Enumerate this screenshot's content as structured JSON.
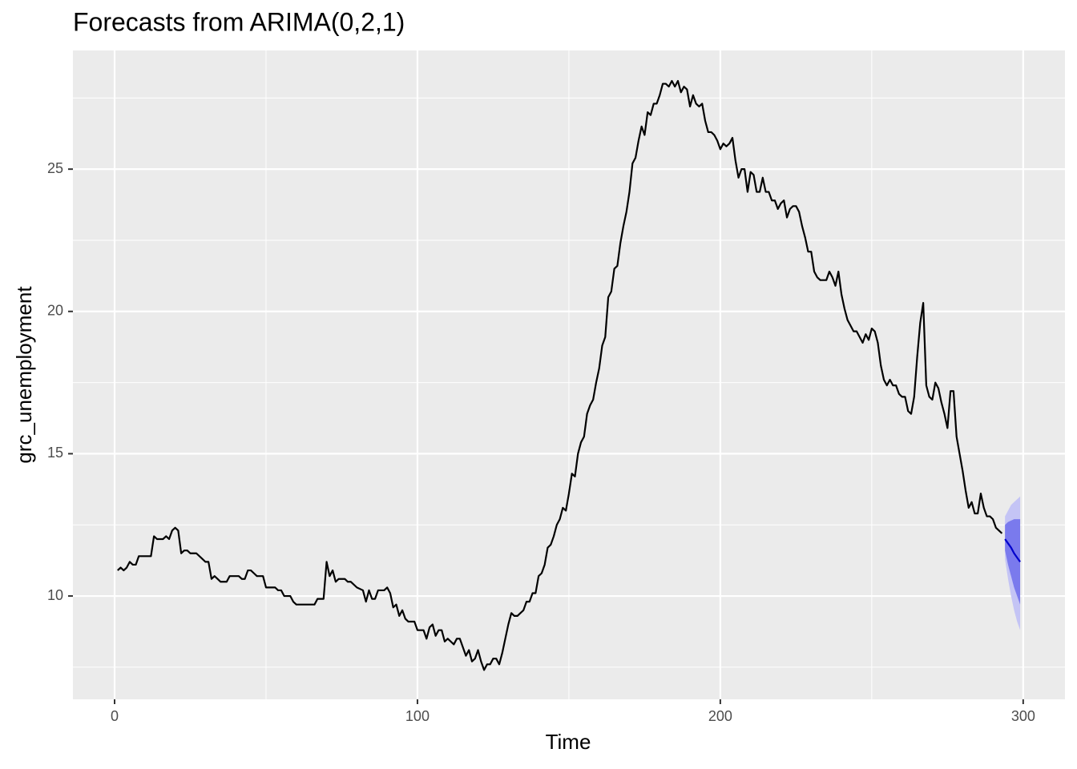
{
  "chart_data": {
    "type": "forecast",
    "title": "Forecasts from ARIMA(0,2,1)",
    "x_label": "Time",
    "y_label": "grc_unemployment",
    "xlim": [
      -13.76,
      313.8
    ],
    "ylim": [
      6.37,
      29.17
    ],
    "xticks": [
      0,
      100,
      200,
      300
    ],
    "yticks": [
      10,
      15,
      20,
      25
    ],
    "x_minor_ticks": [
      50,
      150,
      250
    ],
    "y_minor_ticks": [
      7.5,
      12.5,
      17.5,
      22.5,
      27.5
    ],
    "grid": true,
    "series": [
      {
        "color": "#000000",
        "x": [
          1,
          2,
          3,
          4,
          5,
          6,
          7,
          8,
          12,
          13,
          14,
          16,
          17,
          18,
          19,
          20,
          21,
          22,
          23,
          24,
          25,
          27,
          29,
          30,
          31,
          32,
          33,
          34,
          35,
          37,
          38,
          41,
          42,
          43,
          44,
          45,
          46,
          47,
          49,
          50,
          53,
          54,
          55,
          56,
          58,
          59,
          60,
          66,
          67,
          69,
          70,
          71,
          72,
          73,
          74,
          76,
          77,
          78,
          80,
          82,
          83,
          84,
          85,
          86,
          87,
          89,
          90,
          91,
          92,
          93,
          94,
          95,
          96,
          97,
          99,
          100,
          102,
          103,
          104,
          105,
          106,
          107,
          108,
          109,
          110,
          111,
          112,
          113,
          114,
          115,
          116,
          117,
          118,
          119,
          120,
          121,
          122,
          123,
          124,
          125,
          126,
          127,
          128,
          129,
          130,
          131,
          132,
          133,
          134,
          135,
          136,
          137,
          138,
          139,
          140,
          141,
          142,
          143,
          144,
          145,
          146,
          147,
          148,
          149,
          150,
          151,
          152,
          153,
          154,
          155,
          156,
          157,
          158,
          159,
          160,
          161,
          162,
          163,
          164,
          165,
          166,
          167,
          168,
          169,
          170,
          171,
          172,
          173,
          174,
          175,
          176,
          177,
          178,
          179,
          180,
          181,
          182,
          183,
          184,
          185,
          186,
          187,
          188,
          189,
          190,
          191,
          192,
          193,
          194,
          195,
          196,
          197,
          198,
          199,
          200,
          201,
          202,
          203,
          204,
          205,
          206,
          207,
          208,
          209,
          210,
          211,
          212,
          213,
          214,
          215,
          216,
          217,
          218,
          219,
          220,
          221,
          222,
          223,
          224,
          225,
          226,
          227,
          228,
          229,
          230,
          231,
          232,
          233,
          234,
          235,
          236,
          237,
          238,
          239,
          240,
          241,
          242,
          243,
          244,
          245,
          246,
          247,
          248,
          249,
          250,
          251,
          252,
          253,
          254,
          255,
          256,
          257,
          258,
          259,
          260,
          261,
          262,
          263,
          264,
          265,
          266,
          267,
          268,
          269,
          270,
          271,
          272,
          273,
          274,
          275,
          276,
          277,
          278,
          279,
          280,
          281,
          282,
          283,
          284,
          285,
          286,
          287,
          288,
          289,
          290,
          291,
          292,
          293
        ],
        "values": [
          10.9,
          11.0,
          10.9,
          11.0,
          11.2,
          11.1,
          11.1,
          11.4,
          11.4,
          12.1,
          12.0,
          12.0,
          12.1,
          12.0,
          12.3,
          12.4,
          12.3,
          11.5,
          11.6,
          11.6,
          11.5,
          11.5,
          11.3,
          11.2,
          11.2,
          10.6,
          10.7,
          10.6,
          10.5,
          10.5,
          10.7,
          10.7,
          10.6,
          10.6,
          10.9,
          10.9,
          10.8,
          10.7,
          10.7,
          10.3,
          10.3,
          10.2,
          10.2,
          10.0,
          10.0,
          9.8,
          9.7,
          9.7,
          9.9,
          9.9,
          11.2,
          10.7,
          10.9,
          10.5,
          10.6,
          10.6,
          10.5,
          10.5,
          10.3,
          10.2,
          9.8,
          10.2,
          9.9,
          9.9,
          10.2,
          10.2,
          10.3,
          10.1,
          9.6,
          9.7,
          9.3,
          9.5,
          9.2,
          9.1,
          9.1,
          8.8,
          8.8,
          8.5,
          8.9,
          9.0,
          8.6,
          8.8,
          8.8,
          8.4,
          8.5,
          8.4,
          8.3,
          8.5,
          8.5,
          8.2,
          7.9,
          8.1,
          7.7,
          7.8,
          8.1,
          7.7,
          7.4,
          7.6,
          7.6,
          7.8,
          7.8,
          7.6,
          8.0,
          8.5,
          9.0,
          9.4,
          9.3,
          9.3,
          9.4,
          9.5,
          9.8,
          9.8,
          10.1,
          10.1,
          10.7,
          10.8,
          11.1,
          11.7,
          11.8,
          12.1,
          12.5,
          12.7,
          13.1,
          13.0,
          13.6,
          14.3,
          14.2,
          15.0,
          15.4,
          15.6,
          16.4,
          16.7,
          16.9,
          17.5,
          18.0,
          18.8,
          19.1,
          20.5,
          20.7,
          21.5,
          21.6,
          22.4,
          23.0,
          23.5,
          24.2,
          25.2,
          25.4,
          26.0,
          26.5,
          26.2,
          27.0,
          26.9,
          27.3,
          27.3,
          27.6,
          28.0,
          28.0,
          27.9,
          28.1,
          27.9,
          28.1,
          27.7,
          27.9,
          27.8,
          27.2,
          27.6,
          27.3,
          27.2,
          27.3,
          26.7,
          26.3,
          26.3,
          26.2,
          26.0,
          25.7,
          25.9,
          25.8,
          25.9,
          26.1,
          25.3,
          24.7,
          25.0,
          25.0,
          24.2,
          24.9,
          24.8,
          24.2,
          24.2,
          24.7,
          24.2,
          24.2,
          23.9,
          23.9,
          23.6,
          23.8,
          23.9,
          23.3,
          23.6,
          23.7,
          23.7,
          23.5,
          23.0,
          22.6,
          22.1,
          22.1,
          21.4,
          21.2,
          21.1,
          21.1,
          21.1,
          21.4,
          21.2,
          20.9,
          21.4,
          20.6,
          20.1,
          19.7,
          19.5,
          19.3,
          19.3,
          19.1,
          18.9,
          19.2,
          19.0,
          19.4,
          19.3,
          18.9,
          18.1,
          17.6,
          17.4,
          17.6,
          17.4,
          17.4,
          17.1,
          17.0,
          17.0,
          16.5,
          16.4,
          17.0,
          18.4,
          19.6,
          20.3,
          17.4,
          17.0,
          16.9,
          17.5,
          17.3,
          16.8,
          16.4,
          15.9,
          17.2,
          17.2,
          15.6,
          15.0,
          14.4,
          13.7,
          13.1,
          13.3,
          12.9,
          12.9,
          13.6,
          13.1,
          12.8,
          12.8,
          12.7,
          12.4,
          12.3,
          12.2
        ]
      },
      {
        "color": "#0000cc",
        "band80_color": "#7a7aed",
        "band95_color": "#c4c4f5",
        "x": [
          294,
          295,
          296,
          297,
          298,
          299
        ],
        "values": [
          12.0,
          11.85,
          11.7,
          11.5,
          11.35,
          11.2
        ],
        "lower80": [
          11.6,
          11.1,
          10.7,
          10.3,
          10.0,
          9.7
        ],
        "upper80": [
          12.5,
          12.6,
          12.65,
          12.7,
          12.7,
          12.7
        ],
        "lower95": [
          11.3,
          10.6,
          10.0,
          9.5,
          9.1,
          8.8
        ],
        "upper95": [
          12.8,
          13.0,
          13.2,
          13.3,
          13.4,
          13.5
        ]
      }
    ]
  }
}
